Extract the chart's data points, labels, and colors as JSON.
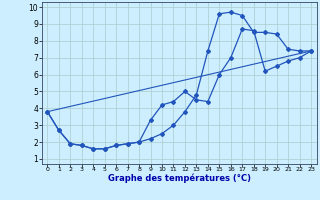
{
  "xlabel": "Graphe des températures (°C)",
  "bg_color": "#cceeff",
  "grid_color": "#aacccc",
  "line_color": "#2255bb",
  "xlim": [
    0,
    23
  ],
  "ylim": [
    1,
    10
  ],
  "xticks": [
    0,
    1,
    2,
    3,
    4,
    5,
    6,
    7,
    8,
    9,
    10,
    11,
    12,
    13,
    14,
    15,
    16,
    17,
    18,
    19,
    20,
    21,
    22,
    23
  ],
  "yticks": [
    1,
    2,
    3,
    4,
    5,
    6,
    7,
    8,
    9,
    10
  ],
  "curve1_x": [
    0,
    1,
    2,
    3,
    4,
    5,
    6,
    7,
    8,
    9,
    10,
    11,
    12,
    13,
    14,
    15,
    16,
    17,
    18,
    19,
    20,
    21,
    22,
    23
  ],
  "curve1_y": [
    3.8,
    2.7,
    1.9,
    1.8,
    1.6,
    1.6,
    1.8,
    1.9,
    2.0,
    2.2,
    2.5,
    3.0,
    3.8,
    4.8,
    7.4,
    9.6,
    9.7,
    9.5,
    8.5,
    8.5,
    8.4,
    7.5,
    7.4,
    7.4
  ],
  "curve2_x": [
    0,
    1,
    2,
    3,
    4,
    5,
    6,
    7,
    8,
    9,
    10,
    11,
    12,
    13,
    14,
    15,
    16,
    17,
    18,
    19,
    20,
    21,
    22,
    23
  ],
  "curve2_y": [
    3.8,
    2.7,
    1.9,
    1.8,
    1.6,
    1.6,
    1.8,
    1.9,
    2.0,
    3.3,
    4.2,
    4.4,
    5.0,
    4.5,
    4.4,
    6.0,
    7.0,
    8.7,
    8.6,
    6.2,
    6.5,
    6.8,
    7.0,
    7.4
  ],
  "curve3_x": [
    0,
    23
  ],
  "curve3_y": [
    3.8,
    7.4
  ]
}
